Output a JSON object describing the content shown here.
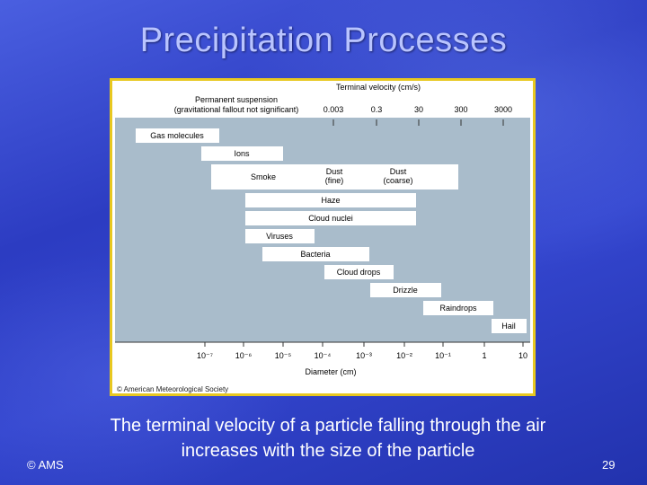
{
  "slide": {
    "title": "Precipitation Processes",
    "caption": "The terminal velocity of a particle falling through the air increases with the size of the particle",
    "copyright": "© AMS",
    "number": "29"
  },
  "figure": {
    "top_axis_title": "Terminal velocity (cm/s)",
    "permanent_suspension_line1": "Permanent suspension",
    "permanent_suspension_line2": "(gravitational fallout not significant)",
    "velocity_ticks": [
      "0.003",
      "0.3",
      "30",
      "300",
      "3000"
    ],
    "particles": [
      "Gas molecules",
      "Ions",
      "Smoke",
      "Dust\n(fine)",
      "Dust\n(coarse)",
      "Haze",
      "Cloud nuclei",
      "Viruses",
      "Bacteria",
      "Cloud drops",
      "Drizzle",
      "Raindrops",
      "Hail"
    ],
    "diameter_ticks": [
      "10⁻⁷",
      "10⁻⁶",
      "10⁻⁵",
      "10⁻⁴",
      "10⁻³",
      "10⁻²",
      "10⁻¹",
      "1",
      "10"
    ],
    "bottom_axis_title": "Diameter (cm)",
    "credit": "© American Meteorological Society"
  },
  "colors": {
    "panel_blue": "#a9bccb",
    "bar_fill": "#ffffff",
    "frame_gold": "#e8c820"
  }
}
